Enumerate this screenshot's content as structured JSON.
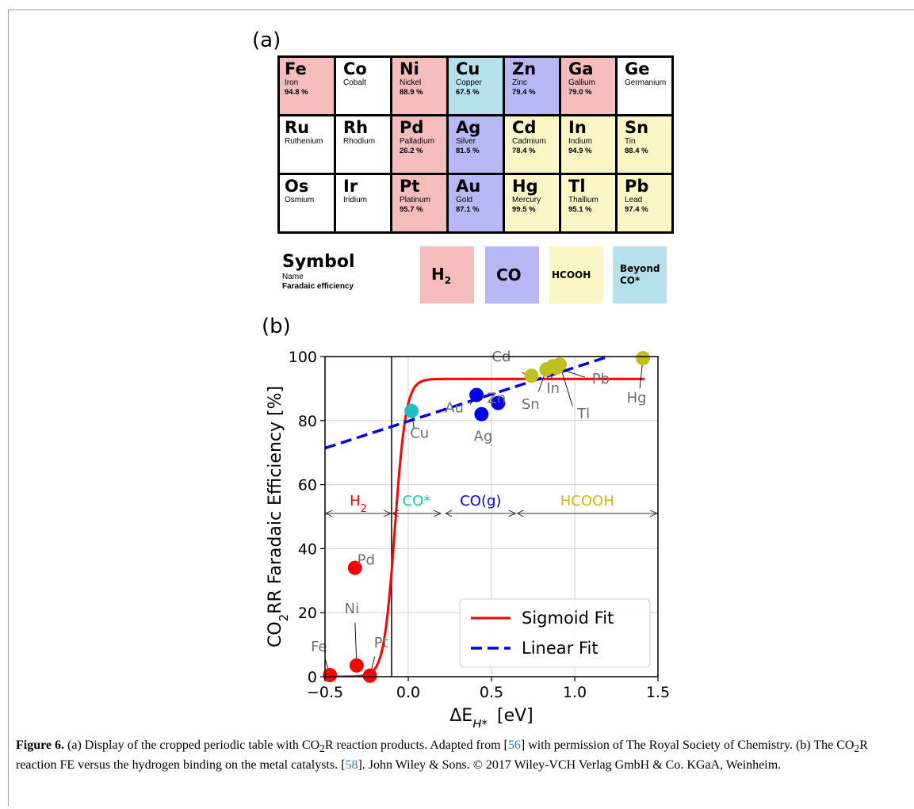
{
  "panel_a_label": "(a)",
  "panel_b_label": "(b)",
  "periodic_table": [
    [
      {
        "symbol": "Fe",
        "name": "Iron",
        "fe": "94.8 %",
        "product": "H2"
      },
      {
        "symbol": "Co",
        "name": "Cobalt",
        "fe": "",
        "product": "none"
      },
      {
        "symbol": "Ni",
        "name": "Nickel",
        "fe": "88.9 %",
        "product": "H2"
      },
      {
        "symbol": "Cu",
        "name": "Copper",
        "fe": "67.5 %",
        "product": "beyond"
      },
      {
        "symbol": "Zn",
        "name": "Zinc",
        "fe": "79.4 %",
        "product": "CO"
      },
      {
        "symbol": "Ga",
        "name": "Gallium",
        "fe": "79.0 %",
        "product": "H2"
      },
      {
        "symbol": "Ge",
        "name": "Germanium",
        "fe": "",
        "product": "none"
      }
    ],
    [
      {
        "symbol": "Ru",
        "name": "Ruthenium",
        "fe": "",
        "product": "none"
      },
      {
        "symbol": "Rh",
        "name": "Rhodium",
        "fe": "",
        "product": "none"
      },
      {
        "symbol": "Pd",
        "name": "Palladium",
        "fe": "26.2 %",
        "product": "H2"
      },
      {
        "symbol": "Ag",
        "name": "Silver",
        "fe": "81.5 %",
        "product": "CO"
      },
      {
        "symbol": "Cd",
        "name": "Cadmium",
        "fe": "78.4 %",
        "product": "HCOOH"
      },
      {
        "symbol": "In",
        "name": "Indium",
        "fe": "94.9 %",
        "product": "HCOOH"
      },
      {
        "symbol": "Sn",
        "name": "Tin",
        "fe": "88.4 %",
        "product": "HCOOH"
      }
    ],
    [
      {
        "symbol": "Os",
        "name": "Osmium",
        "fe": "",
        "product": "none"
      },
      {
        "symbol": "Ir",
        "name": "Iridium",
        "fe": "",
        "product": "none"
      },
      {
        "symbol": "Pt",
        "name": "Platinum",
        "fe": "95.7 %",
        "product": "H2"
      },
      {
        "symbol": "Au",
        "name": "Gold",
        "fe": "87.1 %",
        "product": "CO"
      },
      {
        "symbol": "Hg",
        "name": "Mercury",
        "fe": "99.5 %",
        "product": "HCOOH"
      },
      {
        "symbol": "Tl",
        "name": "Thallium",
        "fe": "95.1 %",
        "product": "HCOOH"
      },
      {
        "symbol": "Pb",
        "name": "Lead",
        "fe": "97.4 %",
        "product": "HCOOH"
      }
    ]
  ],
  "key": {
    "symbol": "Symbol",
    "name": "Name",
    "fe": "Faradaic efficiency",
    "swatches": [
      {
        "label": "H",
        "sub": "2",
        "product": "H2"
      },
      {
        "label": "CO",
        "sub": "",
        "product": "CO"
      },
      {
        "label": "HCOOH",
        "sub": "",
        "product": "HCOOH"
      },
      {
        "label": "Beyond",
        "label2": "CO*",
        "product": "beyond"
      }
    ]
  },
  "colors": {
    "H2": "#f5bcbc",
    "CO": "#b8b8f6",
    "HCOOH": "#fbf6c6",
    "beyond": "#b5e1ec",
    "none": "#ffffff"
  },
  "chart_data": {
    "type": "scatter",
    "ylabel_pre": "CO",
    "ylabel_sub": "2",
    "ylabel_post": "RR Faradaic Efficiency [%]",
    "xlabel_pre": "ΔE",
    "xlabel_sub": "H*",
    "xlabel_post": "[eV]",
    "xlim": [
      -0.5,
      1.5
    ],
    "ylim": [
      0,
      100
    ],
    "xticks": [
      -0.5,
      0.0,
      0.5,
      1.0,
      1.5
    ],
    "xtick_labels": [
      "−0.5",
      "0.0",
      "0.5",
      "1.0",
      "1.5"
    ],
    "yticks": [
      0,
      20,
      40,
      60,
      80,
      100
    ],
    "ytick_labels": [
      "0",
      "20",
      "40",
      "60",
      "80",
      "100"
    ],
    "grid": true,
    "vline_x": -0.1,
    "points": [
      {
        "label": "Fe",
        "x": -0.47,
        "y": 0.5,
        "color": "#ff0000"
      },
      {
        "label": "Ni",
        "x": -0.31,
        "y": 3.5,
        "color": "#ff0000"
      },
      {
        "label": "Pt",
        "x": -0.23,
        "y": 0.3,
        "color": "#ff0000"
      },
      {
        "label": "Pd",
        "x": -0.32,
        "y": 34,
        "color": "#ff0000"
      },
      {
        "label": "Cu",
        "x": 0.02,
        "y": 83,
        "color": "#1fbfbf"
      },
      {
        "label": "Au",
        "x": 0.41,
        "y": 88,
        "color": "#0000e6"
      },
      {
        "label": "Ag",
        "x": 0.44,
        "y": 82,
        "color": "#0000e6"
      },
      {
        "label": "Zn",
        "x": 0.54,
        "y": 85.5,
        "color": "#0000e6"
      },
      {
        "label": "Cd",
        "x": 0.74,
        "y": 94,
        "color": "#bfbf1f"
      },
      {
        "label": "Sn",
        "x": 0.83,
        "y": 96,
        "color": "#bfbf1f"
      },
      {
        "label": "In",
        "x": 0.87,
        "y": 97,
        "color": "#bfbf1f"
      },
      {
        "label": "Tl",
        "x": 0.91,
        "y": 97.5,
        "color": "#bfbf1f"
      },
      {
        "label": "Pb",
        "x": 0.89,
        "y": 96.5,
        "color": "#bfbf1f"
      },
      {
        "label": "Hg",
        "x": 1.41,
        "y": 99.5,
        "color": "#bfbf1f"
      }
    ],
    "regions": [
      {
        "label": "H",
        "sub": "2",
        "x_from": -0.5,
        "x_to": -0.1,
        "color": "#ff0000"
      },
      {
        "label": "CO*",
        "sub": "",
        "x_from": -0.1,
        "x_to": 0.2,
        "color": "#1fbfbf"
      },
      {
        "label": "CO(g)",
        "sub": "",
        "x_from": 0.22,
        "x_to": 0.65,
        "color": "#0000e6"
      },
      {
        "label": "HCOOH",
        "sub": "",
        "x_from": 0.65,
        "x_to": 1.5,
        "color": "#bfbf1f"
      }
    ],
    "region_arrow_y": 51,
    "series": [
      {
        "name": "Sigmoid Fit",
        "style": "solid",
        "color": "#ff0000",
        "ymax": 93,
        "x0": -0.08,
        "k": 30
      },
      {
        "name": "Linear Fit",
        "style": "dashed",
        "color": "#0000e6",
        "intercept": 79.8,
        "slope": 16.8
      }
    ],
    "legend_position": "lower-right"
  },
  "caption": {
    "lead": "Figure 6.",
    "text_1": " (a) Display of the cropped periodic table with CO",
    "sub_1": "2",
    "text_2": "R reaction products. Adapted from [",
    "ref_1": "56",
    "text_3": "] with permission of The Royal Society of Chemistry. (b) The CO",
    "sub_2": "2",
    "text_4": "R reaction FE versus the hydrogen binding on the metal catalysts. [",
    "ref_2": "58",
    "text_5": "]. John Wiley & Sons. © 2017 Wiley-VCH Verlag GmbH & Co. KGaA, Weinheim."
  }
}
